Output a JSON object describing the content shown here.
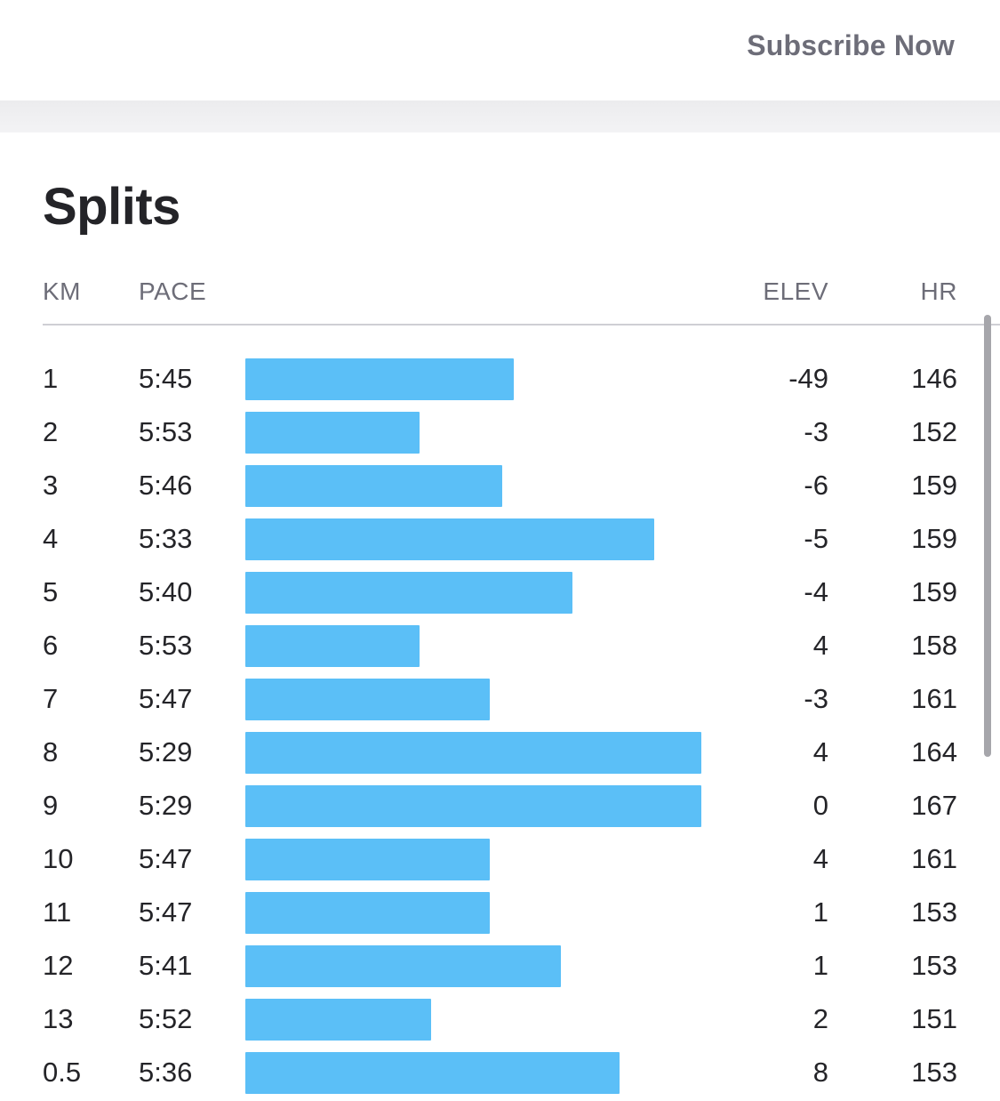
{
  "header": {
    "subscribe_label": "Subscribe Now"
  },
  "splits": {
    "title": "Splits",
    "columns": {
      "km": "KM",
      "pace": "PACE",
      "elev": "ELEV",
      "hr": "HR"
    },
    "rows": [
      {
        "km": "1",
        "pace": "5:45",
        "elev": "-49",
        "hr": "146"
      },
      {
        "km": "2",
        "pace": "5:53",
        "elev": "-3",
        "hr": "152"
      },
      {
        "km": "3",
        "pace": "5:46",
        "elev": "-6",
        "hr": "159"
      },
      {
        "km": "4",
        "pace": "5:33",
        "elev": "-5",
        "hr": "159"
      },
      {
        "km": "5",
        "pace": "5:40",
        "elev": "-4",
        "hr": "159"
      },
      {
        "km": "6",
        "pace": "5:53",
        "elev": "4",
        "hr": "158"
      },
      {
        "km": "7",
        "pace": "5:47",
        "elev": "-3",
        "hr": "161"
      },
      {
        "km": "8",
        "pace": "5:29",
        "elev": "4",
        "hr": "164"
      },
      {
        "km": "9",
        "pace": "5:29",
        "elev": "0",
        "hr": "167"
      },
      {
        "km": "10",
        "pace": "5:47",
        "elev": "4",
        "hr": "161"
      },
      {
        "km": "11",
        "pace": "5:47",
        "elev": "1",
        "hr": "153"
      },
      {
        "km": "12",
        "pace": "5:41",
        "elev": "1",
        "hr": "153"
      },
      {
        "km": "13",
        "pace": "5:52",
        "elev": "2",
        "hr": "151"
      },
      {
        "km": "0.5",
        "pace": "5:36",
        "elev": "8",
        "hr": "153"
      }
    ]
  },
  "colors": {
    "bar": "#5bbff7",
    "text": "#242428",
    "muted": "#6d6d78"
  }
}
